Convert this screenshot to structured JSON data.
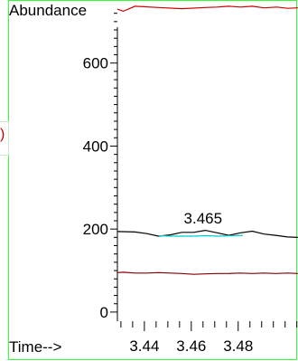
{
  "side_label": ")",
  "chart_data": {
    "type": "line",
    "ylabel": "Abundance",
    "xlabel": "Time-->",
    "xlim": [
      3.4285,
      3.5055
    ],
    "ylim": [
      -22,
      752
    ],
    "x_ticks": [
      3.44,
      3.46,
      3.48
    ],
    "y_ticks": [
      0,
      200,
      400,
      600
    ],
    "annotations": [
      {
        "text": "3.465",
        "x": 3.465,
        "y": 213
      }
    ],
    "series": [
      {
        "color": "#cc0000",
        "x": [
          3.4285,
          3.431,
          3.436,
          3.446,
          3.456,
          3.466,
          3.471,
          3.476,
          3.481,
          3.486,
          3.491,
          3.4965,
          3.501,
          3.5055
        ],
        "y": [
          730,
          725,
          737,
          734,
          731,
          734,
          735,
          737,
          735,
          737,
          733,
          735,
          732,
          733
        ]
      },
      {
        "color": "#000000",
        "x": [
          3.4285,
          3.436,
          3.441,
          3.446,
          3.451,
          3.456,
          3.461,
          3.466,
          3.471,
          3.476,
          3.481,
          3.486,
          3.491,
          3.496,
          3.501,
          3.5055
        ],
        "y": [
          194,
          193,
          189,
          183,
          186,
          192,
          192,
          197,
          191,
          185,
          191,
          195,
          188,
          185,
          181,
          180
        ]
      },
      {
        "color": "#00cccc",
        "x": [
          3.446,
          3.451,
          3.461,
          3.466,
          3.471,
          3.478,
          3.482
        ],
        "y": [
          184,
          183,
          183,
          184,
          183,
          184,
          185
        ]
      },
      {
        "color": "#880000",
        "x": [
          3.4285,
          3.431,
          3.436,
          3.441,
          3.446,
          3.451,
          3.456,
          3.461,
          3.466,
          3.471,
          3.476,
          3.481,
          3.486,
          3.491,
          3.496,
          3.501,
          3.5055
        ],
        "y": [
          95,
          96,
          94,
          94,
          95,
          94,
          93,
          91,
          92,
          93,
          93,
          94,
          93,
          94,
          93,
          94,
          93
        ]
      }
    ]
  }
}
